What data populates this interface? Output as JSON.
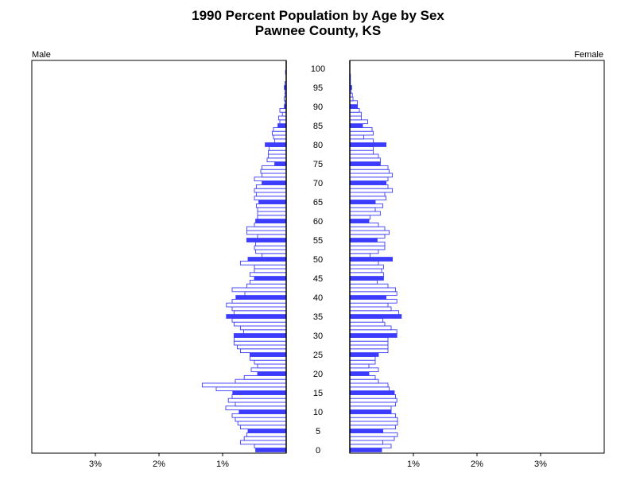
{
  "chart_data": {
    "type": "bar",
    "orientation": "horizontal-population-pyramid",
    "title": "1990 Percent Population by Age by Sex",
    "subtitle": "Pawnee County, KS",
    "left_label": "Male",
    "right_label": "Female",
    "x_tick_labels": [
      "3%",
      "2%",
      "1%",
      "1%",
      "2%",
      "3%"
    ],
    "x_ticks_male": [
      3,
      2,
      1
    ],
    "x_ticks_female": [
      1,
      2,
      3
    ],
    "xlim": [
      0,
      4
    ],
    "age_tick_labels": [
      "100",
      "95",
      "90",
      "85",
      "80",
      "75",
      "70",
      "65",
      "60",
      "55",
      "50",
      "45",
      "40",
      "35",
      "30",
      "25",
      "20",
      "15",
      "10",
      "5",
      "0"
    ],
    "ages": [
      0,
      1,
      2,
      3,
      4,
      5,
      6,
      7,
      8,
      9,
      10,
      11,
      12,
      13,
      14,
      15,
      16,
      17,
      18,
      19,
      20,
      21,
      22,
      23,
      24,
      25,
      26,
      27,
      28,
      29,
      30,
      31,
      32,
      33,
      34,
      35,
      36,
      37,
      38,
      39,
      40,
      41,
      42,
      43,
      44,
      45,
      46,
      47,
      48,
      49,
      50,
      51,
      52,
      53,
      54,
      55,
      56,
      57,
      58,
      59,
      60,
      61,
      62,
      63,
      64,
      65,
      66,
      67,
      68,
      69,
      70,
      71,
      72,
      73,
      74,
      75,
      76,
      77,
      78,
      79,
      80,
      81,
      82,
      83,
      84,
      85,
      86,
      87,
      88,
      89,
      90,
      91,
      92,
      93,
      94,
      95,
      96,
      97,
      98,
      99,
      100
    ],
    "highlight_every": 5,
    "series": [
      {
        "name": "Male",
        "values": [
          0.48,
          0.5,
          0.72,
          0.66,
          0.62,
          0.6,
          0.72,
          0.76,
          0.8,
          0.85,
          0.74,
          0.95,
          0.8,
          0.91,
          0.85,
          0.84,
          1.1,
          1.32,
          0.8,
          0.66,
          0.45,
          0.55,
          0.45,
          0.5,
          0.57,
          0.57,
          0.72,
          0.77,
          0.82,
          0.82,
          0.82,
          0.67,
          0.72,
          0.82,
          0.85,
          0.94,
          0.82,
          0.85,
          0.94,
          0.85,
          0.79,
          0.65,
          0.85,
          0.62,
          0.57,
          0.5,
          0.57,
          0.5,
          0.5,
          0.72,
          0.6,
          0.38,
          0.48,
          0.5,
          0.48,
          0.62,
          0.45,
          0.62,
          0.62,
          0.5,
          0.48,
          0.45,
          0.45,
          0.45,
          0.47,
          0.43,
          0.5,
          0.47,
          0.5,
          0.47,
          0.38,
          0.5,
          0.38,
          0.4,
          0.38,
          0.18,
          0.3,
          0.28,
          0.28,
          0.27,
          0.33,
          0.18,
          0.2,
          0.22,
          0.2,
          0.13,
          0.1,
          0.12,
          0.06,
          0.1,
          0.03,
          0.02,
          0.03,
          0.02,
          0.02,
          0.03,
          0.02,
          0.0,
          0.0,
          0.01,
          0.0
        ]
      },
      {
        "name": "Female",
        "values": [
          0.5,
          0.65,
          0.52,
          0.7,
          0.75,
          0.52,
          0.72,
          0.75,
          0.75,
          0.72,
          0.65,
          0.65,
          0.72,
          0.74,
          0.72,
          0.7,
          0.62,
          0.6,
          0.45,
          0.4,
          0.3,
          0.45,
          0.3,
          0.4,
          0.4,
          0.45,
          0.6,
          0.6,
          0.6,
          0.6,
          0.74,
          0.74,
          0.65,
          0.55,
          0.52,
          0.81,
          0.77,
          0.65,
          0.6,
          0.74,
          0.57,
          0.74,
          0.72,
          0.6,
          0.43,
          0.53,
          0.53,
          0.5,
          0.53,
          0.45,
          0.67,
          0.32,
          0.45,
          0.55,
          0.55,
          0.43,
          0.55,
          0.62,
          0.55,
          0.45,
          0.3,
          0.32,
          0.48,
          0.4,
          0.52,
          0.4,
          0.57,
          0.55,
          0.67,
          0.6,
          0.57,
          0.6,
          0.67,
          0.62,
          0.6,
          0.48,
          0.48,
          0.45,
          0.37,
          0.37,
          0.57,
          0.37,
          0.22,
          0.37,
          0.35,
          0.2,
          0.28,
          0.18,
          0.18,
          0.15,
          0.12,
          0.12,
          0.05,
          0.04,
          0.02,
          0.03,
          0.01,
          0.01,
          0.01,
          0.0,
          0.0
        ]
      }
    ],
    "colors": {
      "highlight_fill": "#3c3cff",
      "bar_outline": "#3c3cff",
      "bar_fill": "#ffffff",
      "axis": "#000000"
    },
    "grid": false,
    "legend": "none"
  }
}
